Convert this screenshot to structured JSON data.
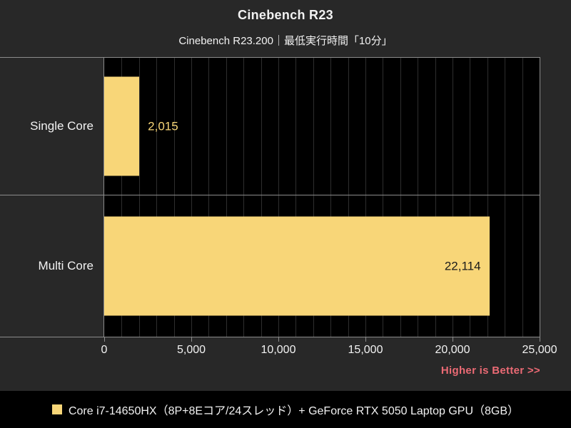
{
  "colors": {
    "background": "#282828",
    "plot_background": "#000000",
    "frame": "#8C8C8C",
    "gridline": "#2E2E2E",
    "bar": "#F8D678",
    "text": "#F2F2F2",
    "value_inside": "#1A1A1A",
    "note": "#EA6A74",
    "legend_background": "#000000"
  },
  "chart_data": {
    "type": "bar",
    "orientation": "horizontal",
    "title": "Cinebench R23",
    "subtitle": "Cinebench R23.200｜最低実行時間「10分」",
    "categories": [
      "Single Core",
      "Multi Core"
    ],
    "values": [
      2015,
      22114
    ],
    "value_labels": [
      "2,015",
      "22,114"
    ],
    "value_label_position": [
      "outside",
      "inside"
    ],
    "xlim": [
      0,
      25000
    ],
    "x_ticks": [
      0,
      5000,
      10000,
      15000,
      20000,
      25000
    ],
    "x_tick_labels": [
      "0",
      "5,000",
      "10,000",
      "15,000",
      "20,000",
      "25,000"
    ],
    "minor_tick_interval": 1000,
    "grid": true,
    "annotation": "Higher is Better >>",
    "legend": [
      {
        "label": "Core i7-14650HX（8P+8Eコア/24スレッド）+ GeForce RTX 5050 Laptop GPU（8GB）",
        "color": "#F8D678"
      }
    ]
  }
}
